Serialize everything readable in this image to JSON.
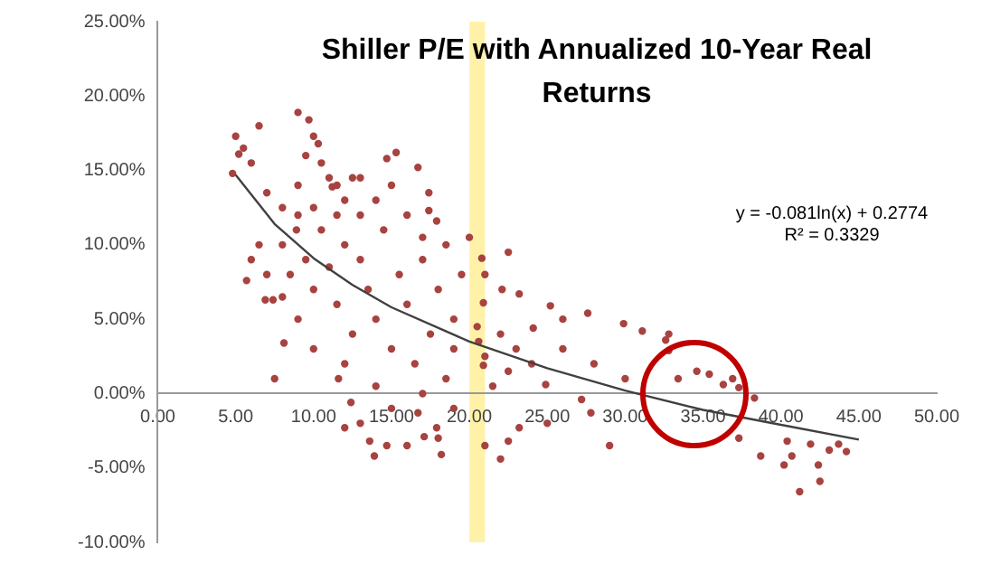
{
  "chart_data": {
    "type": "scatter",
    "title": "Shiller P/E with Annualized 10-Year Real Returns",
    "annotations": [
      "y = -0.081ln(x) + 0.2774",
      "R² = 0.3329"
    ],
    "xlim": [
      0,
      50
    ],
    "xticks": [
      {
        "value": 0,
        "label": "0.00"
      },
      {
        "value": 5,
        "label": "5.00"
      },
      {
        "value": 10,
        "label": "10.00"
      },
      {
        "value": 15,
        "label": "15.00"
      },
      {
        "value": 20,
        "label": "20.00"
      },
      {
        "value": 25,
        "label": "25.00"
      },
      {
        "value": 30,
        "label": "30.00"
      },
      {
        "value": 35,
        "label": "35.00"
      },
      {
        "value": 40,
        "label": "40.00"
      },
      {
        "value": 45,
        "label": "45.00"
      },
      {
        "value": 50,
        "label": "50.00"
      }
    ],
    "ylim": [
      -10,
      25
    ],
    "yticks": [
      {
        "value": -10,
        "label": "-10.00%"
      },
      {
        "value": -5,
        "label": "-5.00%"
      },
      {
        "value": 0,
        "label": "0.00%"
      },
      {
        "value": 5,
        "label": "5.00%"
      },
      {
        "value": 10,
        "label": "10.00%"
      },
      {
        "value": 15,
        "label": "15.00%"
      },
      {
        "value": 20,
        "label": "20.00%"
      },
      {
        "value": 25,
        "label": "25.00%"
      }
    ],
    "grid": false,
    "legend": false,
    "marker": "circle",
    "bands": [
      {
        "axis": "x",
        "from": 20,
        "to": 21,
        "color": "#fff2a8"
      }
    ],
    "series": [
      {
        "type": "scatter",
        "color": "#a84340",
        "x": [
          9.0,
          9.7,
          10.0,
          10.3,
          5.0,
          6.5,
          5.2,
          4.8,
          11.2,
          14.7,
          15.3,
          16.7,
          17.4,
          5.7,
          6.9,
          8.9,
          7.4,
          7.5,
          8.1,
          11.6,
          12,
          13.6,
          13.9,
          14.7,
          16.7,
          17.1,
          12.4,
          17.4,
          17.9,
          22.1,
          23.2,
          25.2,
          27.6,
          29.9,
          31.1,
          32.6,
          32.8,
          24.1,
          22.5,
          24.9,
          27.2,
          27.8,
          22.5,
          22,
          23.2,
          17.9,
          18.2,
          20.9,
          20.8,
          20.6,
          20.9,
          33.4,
          34.6,
          35.4,
          36.3,
          36.9,
          37.3,
          38.3,
          37.3,
          38.7,
          40.4,
          40.7,
          40.2,
          41.2,
          41.9,
          42.4,
          42.5,
          43.1,
          43.7,
          44.2,
          32.8,
          8,
          8.5,
          9,
          9.5,
          10,
          10.5,
          11,
          11.5,
          12,
          12.5,
          13,
          13.5,
          14,
          14.5,
          15,
          15.5,
          16,
          16.5,
          17,
          17.5,
          18,
          18.5,
          19,
          19.5,
          19,
          18,
          16,
          14,
          12,
          10,
          9,
          8,
          6,
          7,
          10,
          11,
          12,
          11.5,
          13,
          14,
          15,
          16,
          13,
          20,
          21,
          22,
          21.5,
          21,
          23,
          24,
          19,
          17,
          15,
          13,
          25,
          26,
          28,
          30,
          29,
          26,
          22.5,
          5.5,
          6,
          7,
          8,
          9,
          6.5,
          9.5,
          10.5,
          11.5,
          12.5,
          17,
          18.5,
          20.5,
          21
        ],
        "values": [
          18.9,
          18.4,
          17.3,
          16.8,
          17.3,
          18,
          16.1,
          14.8,
          13.9,
          15.8,
          16.2,
          15.2,
          12.3,
          7.6,
          6.3,
          11,
          6.3,
          1.0,
          3.4,
          1.0,
          -2.3,
          -3.2,
          -4.2,
          -3.5,
          -1.3,
          -2.9,
          -0.6,
          13.5,
          11.6,
          7.0,
          6.7,
          5.9,
          5.4,
          4.7,
          4.2,
          3.6,
          2.9,
          4.4,
          1.5,
          0.6,
          -0.4,
          -1.3,
          -3.2,
          -4.4,
          -2.3,
          -2.3,
          -4.1,
          6.1,
          9.1,
          3.5,
          1.9,
          1.0,
          1.5,
          1.3,
          0.6,
          1.0,
          0.4,
          -0.3,
          -3.0,
          -4.2,
          -3.2,
          -4.2,
          -4.8,
          -6.6,
          -3.4,
          -4.8,
          -5.9,
          -3.8,
          -3.4,
          -3.9,
          4.0,
          10,
          8,
          12,
          9,
          7,
          11,
          8.5,
          6,
          10,
          4,
          9,
          7,
          5,
          11,
          3,
          8,
          6,
          2,
          9,
          4,
          7,
          1,
          5,
          8,
          -1,
          -3,
          -3.5,
          0.5,
          2,
          3,
          5,
          6.5,
          9,
          8,
          12.5,
          14.5,
          13,
          12,
          12,
          13,
          14,
          12,
          14.5,
          10.5,
          8,
          4,
          0.5,
          -3.5,
          3,
          2,
          3,
          0,
          -1,
          -2,
          -2,
          3,
          2,
          1,
          -3.5,
          5,
          9.5,
          16.5,
          15.5,
          13.5,
          12.5,
          14,
          10,
          16,
          15.5,
          14,
          14.5,
          10.5,
          10,
          4.5,
          2.5
        ]
      },
      {
        "type": "line",
        "marker": "none",
        "color": "#404040",
        "x": [
          5,
          7.5,
          10,
          12.5,
          15,
          20,
          25,
          30,
          35,
          40,
          45
        ],
        "values": [
          14.7,
          11.4,
          9.1,
          7.3,
          5.8,
          3.5,
          1.7,
          0.2,
          -1.1,
          -2.1,
          -3.1
        ]
      }
    ]
  }
}
